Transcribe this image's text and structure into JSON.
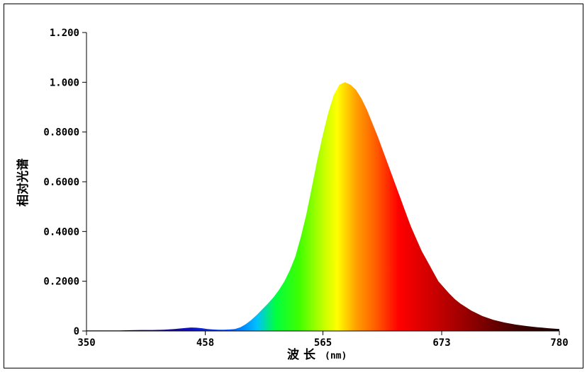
{
  "chart_data": {
    "type": "area",
    "title": "",
    "xlabel": "波 长",
    "xlabel_unit": "(nm)",
    "ylabel": "相对光谱",
    "xlim": [
      350,
      780
    ],
    "ylim": [
      0,
      1.2
    ],
    "x_ticks": [
      350,
      458,
      565,
      673,
      780
    ],
    "x_tick_labels": [
      "350",
      "458",
      "565",
      "673",
      "780"
    ],
    "y_ticks": [
      0,
      0.2,
      0.4,
      0.6,
      0.8,
      1.0,
      1.2
    ],
    "y_tick_labels": [
      "0",
      "0.2000",
      "0.4000",
      "0.6000",
      "0.8000",
      "1.000",
      "1.200"
    ],
    "grid": false,
    "legend": "none",
    "fill": "wavelength-rainbow",
    "series": [
      {
        "x": [
          350,
          360,
          370,
          380,
          390,
          400,
          410,
          420,
          430,
          440,
          445,
          450,
          455,
          460,
          465,
          470,
          475,
          480,
          485,
          490,
          495,
          500,
          505,
          510,
          515,
          520,
          525,
          530,
          535,
          540,
          545,
          550,
          555,
          560,
          565,
          570,
          575,
          580,
          585,
          590,
          595,
          600,
          605,
          610,
          615,
          620,
          625,
          630,
          635,
          640,
          645,
          650,
          655,
          660,
          665,
          670,
          675,
          680,
          685,
          690,
          700,
          710,
          720,
          730,
          740,
          750,
          760,
          770,
          780
        ],
        "values": [
          0.002,
          0.002,
          0.002,
          0.002,
          0.003,
          0.004,
          0.004,
          0.005,
          0.008,
          0.012,
          0.014,
          0.013,
          0.011,
          0.008,
          0.006,
          0.005,
          0.005,
          0.006,
          0.008,
          0.015,
          0.028,
          0.045,
          0.065,
          0.088,
          0.11,
          0.135,
          0.165,
          0.2,
          0.245,
          0.3,
          0.38,
          0.47,
          0.58,
          0.69,
          0.79,
          0.88,
          0.95,
          0.99,
          1.0,
          0.99,
          0.97,
          0.935,
          0.89,
          0.835,
          0.78,
          0.72,
          0.66,
          0.6,
          0.54,
          0.48,
          0.42,
          0.37,
          0.32,
          0.28,
          0.24,
          0.2,
          0.175,
          0.15,
          0.128,
          0.11,
          0.082,
          0.06,
          0.045,
          0.034,
          0.026,
          0.02,
          0.015,
          0.011,
          0.008
        ]
      }
    ]
  }
}
